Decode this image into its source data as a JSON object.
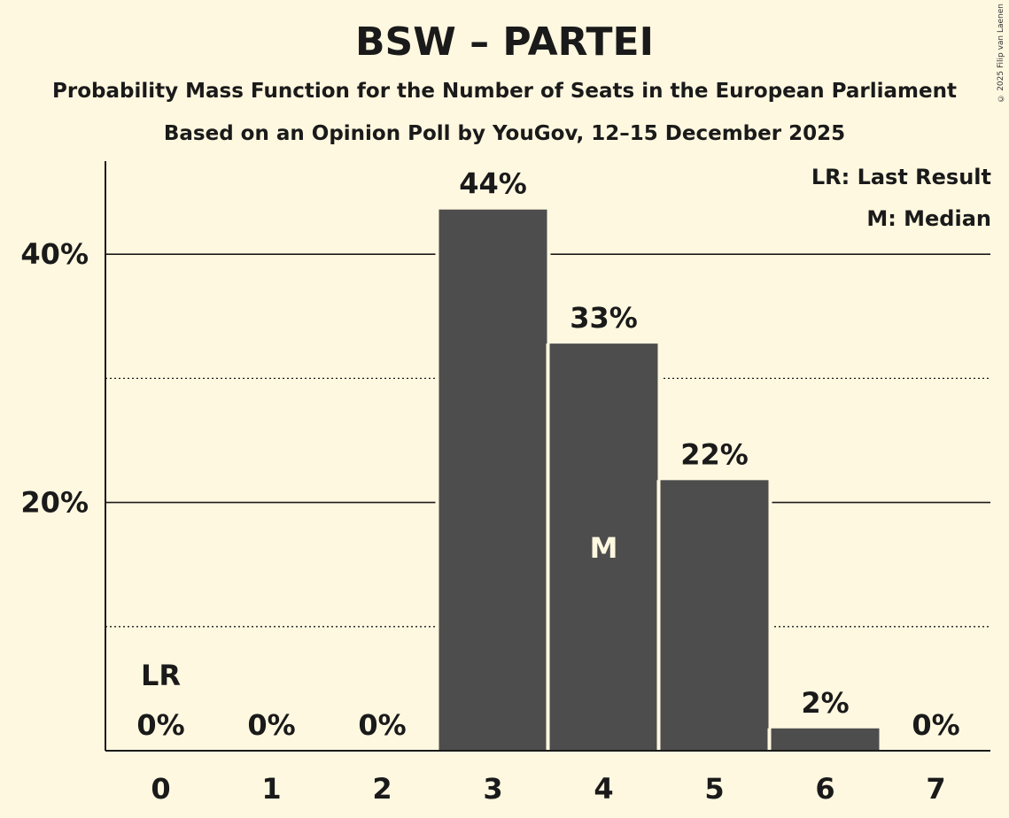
{
  "chart_data": {
    "type": "bar",
    "title": "BSW – PARTEI",
    "subtitle": "Probability Mass Function for the Number of Seats in the European Parliament",
    "subtitle2": "Based on an Opinion Poll by YouGov, 12–15 December 2025",
    "copyright": "© 2025 Filip van Laenen",
    "categories": [
      "0",
      "1",
      "2",
      "3",
      "4",
      "5",
      "6",
      "7"
    ],
    "values": [
      0,
      0,
      0,
      43.6,
      32.8,
      21.8,
      1.8,
      0
    ],
    "value_labels": [
      "0%",
      "0%",
      "0%",
      "44%",
      "33%",
      "22%",
      "2%",
      "0%"
    ],
    "y_ticks": [
      {
        "value": 20,
        "label": "20%"
      },
      {
        "value": 40,
        "label": "40%"
      }
    ],
    "y_minor_ticks": [
      10,
      30
    ],
    "ylim": [
      0,
      47.5
    ],
    "last_result": {
      "category": "0",
      "label": "LR"
    },
    "median": {
      "category": "4",
      "label": "M"
    },
    "legend": [
      "LR: Last Result",
      "M: Median"
    ],
    "colors": {
      "bar": "#4d4d4d",
      "background": "#fff8e0",
      "text": "#1a1a1a",
      "median_text": "#fff8e0"
    }
  }
}
